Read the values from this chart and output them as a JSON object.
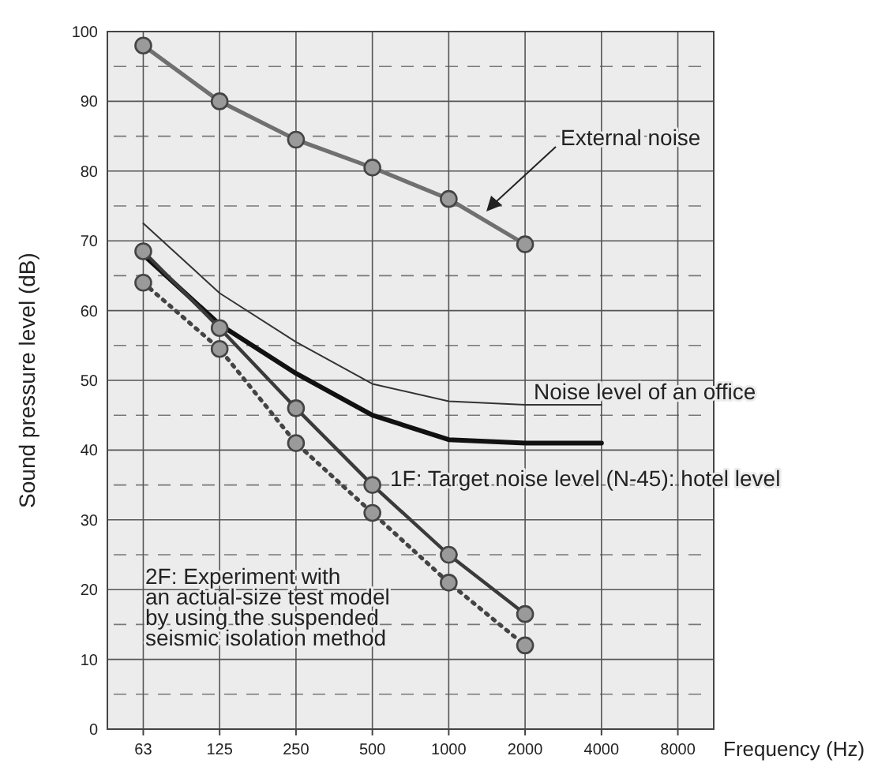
{
  "chart_data": {
    "type": "line",
    "xlabel": "Frequency (Hz)",
    "ylabel": "Sound pressure level (dB)",
    "categories": [
      "63",
      "125",
      "250",
      "500",
      "1000",
      "2000",
      "4000",
      "8000"
    ],
    "ylim": [
      0,
      100
    ],
    "yticks": [
      0,
      10,
      20,
      30,
      40,
      50,
      60,
      70,
      80,
      90,
      100
    ],
    "grid": true,
    "series": [
      {
        "color": "#707070",
        "values": [
          98,
          90,
          84.5,
          80.5,
          76,
          69.5,
          null,
          null
        ],
        "marker": "circle",
        "line_style": "solid"
      },
      {
        "color": "#333333",
        "values": [
          72.5,
          62.5,
          55.5,
          49.5,
          47,
          46.5,
          46.5,
          null
        ],
        "marker": "none",
        "line_style": "solid"
      },
      {
        "color": "#111111",
        "values": [
          68,
          58,
          51,
          45,
          41.5,
          41,
          41,
          null
        ],
        "marker": "none",
        "line_style": "solid"
      },
      {
        "color": "#3a3a3a",
        "values": [
          68.5,
          57.5,
          46,
          35,
          25,
          16.5,
          null,
          null
        ],
        "marker": "circle",
        "line_style": "solid"
      },
      {
        "color": "#444444",
        "values": [
          64,
          54.5,
          41,
          31,
          21,
          12,
          null,
          null
        ],
        "marker": "circle",
        "line_style": "dotted"
      }
    ],
    "annotations": [
      "External noise",
      "Noise level of an office",
      "1F: Target noise level (N-45): hotel level",
      "2F: Experiment with\nan actual-size test model\nby using the suspended\nseismic isolation method"
    ]
  }
}
